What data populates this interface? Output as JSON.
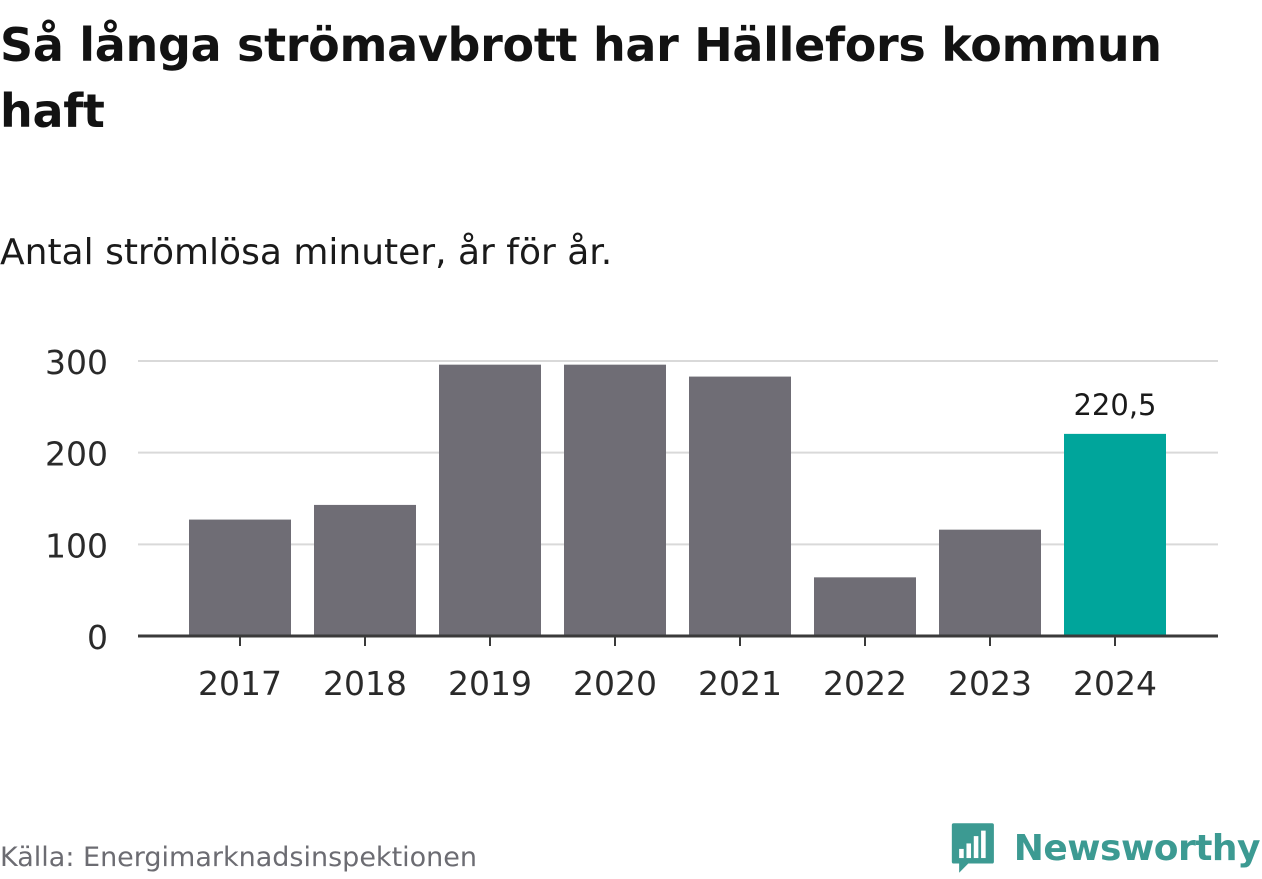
{
  "title": "Så långa strömavbrott har Hällefors kommun haft",
  "subtitle": "Antal strömlösa minuter, år för år.",
  "source": "Källa: Energimarknadsinspektionen",
  "brand": {
    "name": "Newsworthy",
    "icon": "newsworthy-logo-icon"
  },
  "colors": {
    "bar": "#6f6d75",
    "highlight": "#00a59b",
    "grid": "#d9d9d9",
    "axis": "#3a3a3a",
    "brand": "#3c9a92"
  },
  "chart_data": {
    "type": "bar",
    "categories": [
      "2017",
      "2018",
      "2019",
      "2020",
      "2021",
      "2022",
      "2023",
      "2024"
    ],
    "values": [
      127,
      143,
      296,
      296,
      283,
      64,
      116,
      220.5
    ],
    "highlight_index": 7,
    "data_labels": [
      {
        "index": 7,
        "text": "220,5"
      }
    ],
    "yticks": [
      0,
      100,
      200,
      300
    ],
    "ylim": [
      0,
      300
    ],
    "grid": true,
    "xlabel": "",
    "ylabel": ""
  }
}
